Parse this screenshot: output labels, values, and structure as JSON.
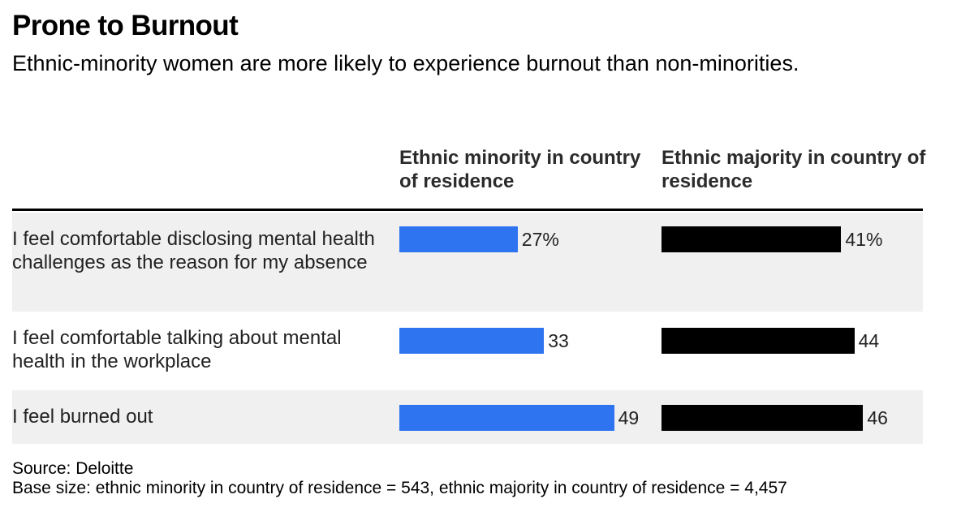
{
  "title": "Prone to Burnout",
  "subtitle": "Ethnic-minority women are more likely to experience burnout than non-minorities.",
  "columns": {
    "minority": "Ethnic minority in country of residence",
    "majority": "Ethnic majority in country of residence"
  },
  "rows": [
    {
      "label": "I feel comfortable disclosing mental health challenges as the reason for my absence",
      "minority_label": "27%",
      "majority_label": "41%"
    },
    {
      "label": "I feel comfortable talking about mental health in the workplace",
      "minority_label": "33",
      "majority_label": "44"
    },
    {
      "label": "I feel burned out",
      "minority_label": "49",
      "majority_label": "46"
    }
  ],
  "footer": {
    "source": "Source: Deloitte",
    "base": "Base size: ethnic minority in country of residence = 543, ethnic majority in country of residence = 4,457"
  },
  "colors": {
    "minority": "#2e74f0",
    "majority": "#000000",
    "row_shade": "#f0f0f0"
  },
  "chart_data": {
    "type": "bar",
    "orientation": "horizontal",
    "title": "Prone to Burnout",
    "subtitle": "Ethnic-minority women are more likely to experience burnout than non-minorities.",
    "categories": [
      "I feel comfortable disclosing mental health challenges as the reason for my absence",
      "I feel comfortable talking about mental health in the workplace",
      "I feel burned out"
    ],
    "series": [
      {
        "name": "Ethnic minority in country of residence",
        "values": [
          27,
          33,
          49
        ]
      },
      {
        "name": "Ethnic majority in country of residence",
        "values": [
          41,
          44,
          46
        ]
      }
    ],
    "unit": "%",
    "xlim": [
      0,
      100
    ],
    "grid": false
  }
}
